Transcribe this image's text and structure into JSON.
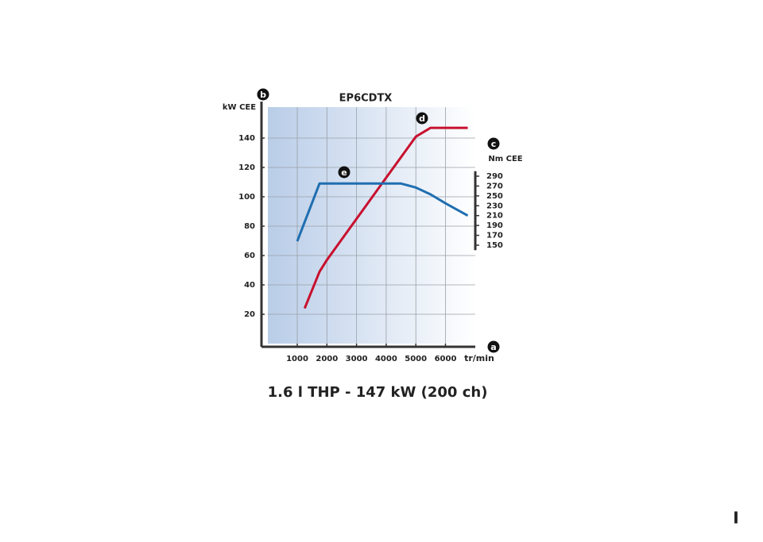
{
  "chart_data": {
    "type": "line",
    "title": "EP6CDTX",
    "caption": "1.6 l THP - 147 kW (200 ch)",
    "page_marker": "I",
    "x_label": "tr/min",
    "y_label": "kW CEE",
    "y2_label": "Nm CEE",
    "x_letter": "a",
    "y_letter": "b",
    "y2_letter": "c",
    "xlim": [
      0,
      7000
    ],
    "xticks": [
      1000,
      2000,
      3000,
      4000,
      5000,
      6000
    ],
    "ylim": [
      0,
      160
    ],
    "yticks": [
      20,
      40,
      60,
      80,
      100,
      120,
      140
    ],
    "y2lim": [
      140,
      300
    ],
    "y2ticks": [
      150,
      170,
      190,
      210,
      230,
      250,
      270,
      290
    ],
    "grid": true,
    "series": [
      {
        "name": "d",
        "color": "#c8102e",
        "x": [
          1250,
          1750,
          2000,
          3000,
          4000,
          5000,
          5500,
          6750
        ],
        "values": [
          24,
          49,
          57,
          85,
          113,
          141,
          147,
          147
        ]
      },
      {
        "name": "e",
        "color": "#1f6eb0",
        "axis": "y2",
        "x": [
          1000,
          1750,
          2000,
          3000,
          4000,
          4500,
          5000,
          5500,
          6000,
          6750
        ],
        "values": [
          158,
          275,
          275,
          275,
          275,
          275,
          267,
          253,
          235,
          210
        ]
      }
    ]
  }
}
